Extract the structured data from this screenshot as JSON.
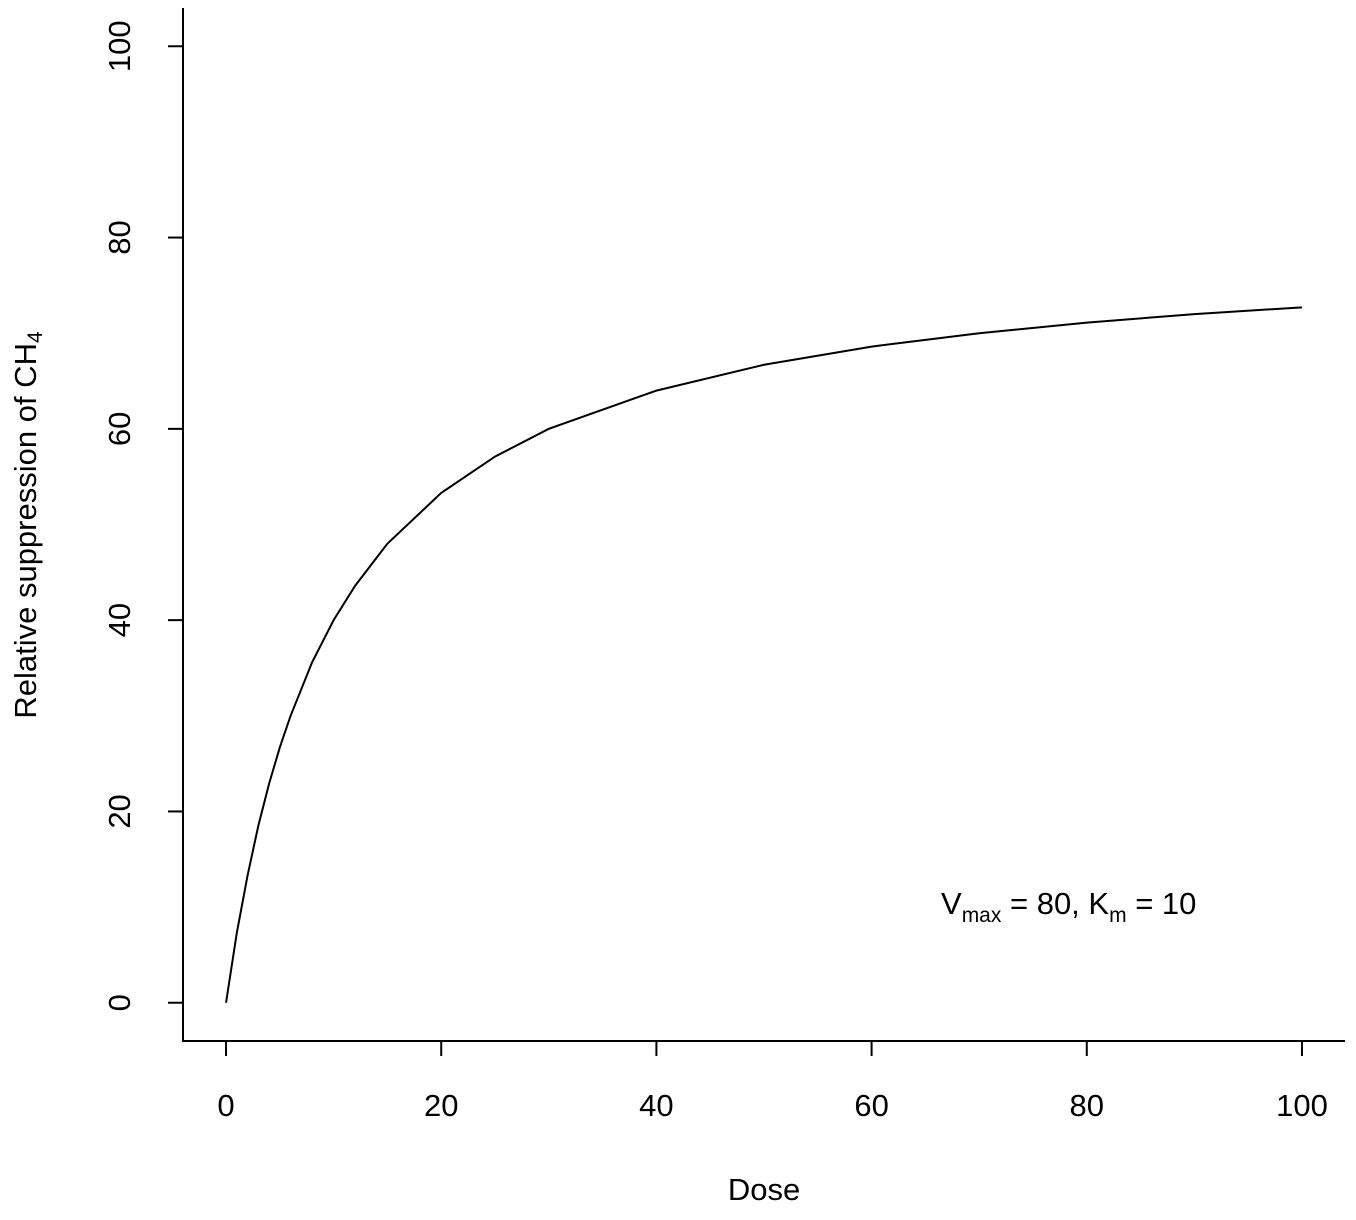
{
  "chart_data": {
    "type": "line",
    "xlabel": "Dose",
    "ylabel": [
      "Relative suppression of CH",
      "4"
    ],
    "annotation": [
      "V",
      "max",
      " = 80, K",
      "m",
      " = 10"
    ],
    "x": [
      0,
      1,
      2,
      3,
      4,
      5,
      6,
      8,
      10,
      12,
      15,
      20,
      25,
      30,
      40,
      50,
      60,
      70,
      80,
      90,
      100
    ],
    "values": [
      0,
      7.3,
      13.3,
      18.5,
      22.9,
      26.7,
      30,
      35.6,
      40,
      43.6,
      48,
      53.3,
      57.1,
      60,
      64,
      66.7,
      68.6,
      70,
      71.1,
      72,
      72.7
    ],
    "color": "#000000",
    "xlim": [
      -4,
      104
    ],
    "ylim": [
      -4,
      104
    ],
    "xticks": [
      0,
      20,
      40,
      60,
      80,
      100
    ],
    "yticks": [
      0,
      20,
      40,
      60,
      80,
      100
    ]
  }
}
